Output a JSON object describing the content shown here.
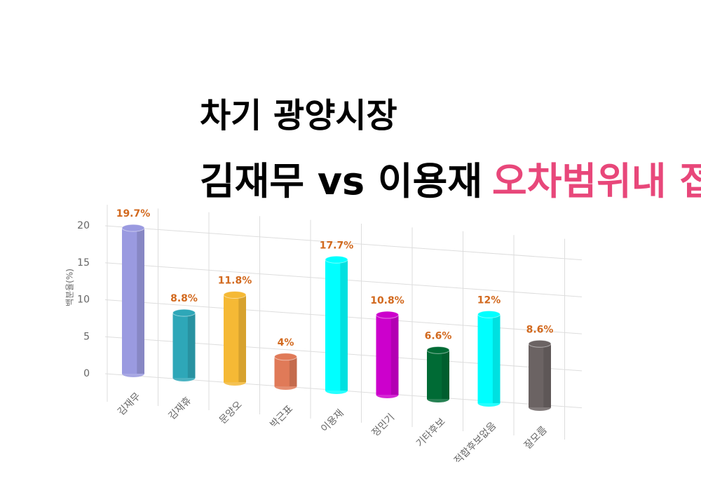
{
  "chart_data": {
    "type": "bar",
    "title": "차기 광양시장",
    "subtitle": "김재무 vs 이용재",
    "subtitle_highlight": "오차범위내 접전 양상",
    "y_label": "백분율(%)",
    "categories": [
      "김재무",
      "김재휴",
      "문양오",
      "박근표",
      "이용재",
      "정민기",
      "기타후보",
      "적합후보없음",
      "잘모름"
    ],
    "values": [
      19.7,
      8.8,
      11.8,
      4,
      17.7,
      10.8,
      6.6,
      12,
      8.6
    ],
    "value_labels": [
      "19.7%",
      "8.8%",
      "11.8%",
      "4%",
      "17.7%",
      "10.8%",
      "6.6%",
      "12%",
      "8.6%"
    ],
    "colors": [
      "#9a9ae0",
      "#2ea7b8",
      "#f5b935",
      "#e07a58",
      "#00ffff",
      "#cc00cc",
      "#006b35",
      "#00ffff",
      "#6b6363"
    ],
    "ylim": [
      0,
      20
    ],
    "yticks": [
      0,
      5,
      10,
      15,
      20
    ],
    "grid": true
  }
}
